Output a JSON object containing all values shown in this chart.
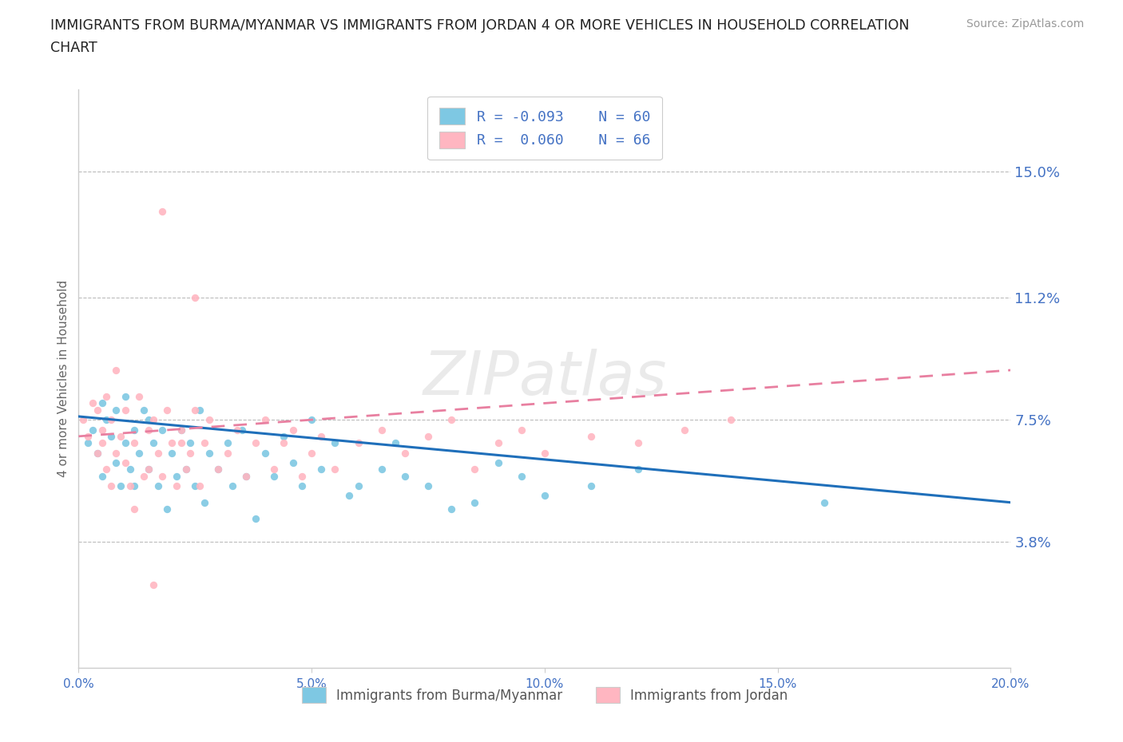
{
  "title_line1": "IMMIGRANTS FROM BURMA/MYANMAR VS IMMIGRANTS FROM JORDAN 4 OR MORE VEHICLES IN HOUSEHOLD CORRELATION",
  "title_line2": "CHART",
  "source": "Source: ZipAtlas.com",
  "ylabel": "4 or more Vehicles in Household",
  "xlim": [
    0.0,
    0.2
  ],
  "ylim": [
    0.0,
    0.175
  ],
  "yticks": [
    0.038,
    0.075,
    0.112,
    0.15
  ],
  "ytick_labels": [
    "3.8%",
    "7.5%",
    "11.2%",
    "15.0%"
  ],
  "xticks": [
    0.0,
    0.05,
    0.1,
    0.15,
    0.2
  ],
  "xtick_labels": [
    "0.0%",
    "5.0%",
    "10.0%",
    "15.0%",
    "20.0%"
  ],
  "blue_R": -0.093,
  "blue_N": 60,
  "pink_R": 0.06,
  "pink_N": 66,
  "blue_color": "#7ec8e3",
  "pink_color": "#ffb6c1",
  "blue_line_color": "#1f6fba",
  "pink_line_color": "#e87fa0",
  "watermark": "ZIPatlas",
  "legend_label_blue": "Immigrants from Burma/Myanmar",
  "legend_label_pink": "Immigrants from Jordan",
  "blue_scatter_x": [
    0.002,
    0.003,
    0.004,
    0.005,
    0.005,
    0.006,
    0.007,
    0.008,
    0.008,
    0.009,
    0.01,
    0.01,
    0.011,
    0.012,
    0.012,
    0.013,
    0.014,
    0.015,
    0.015,
    0.016,
    0.017,
    0.018,
    0.019,
    0.02,
    0.021,
    0.022,
    0.023,
    0.024,
    0.025,
    0.026,
    0.027,
    0.028,
    0.03,
    0.032,
    0.033,
    0.035,
    0.036,
    0.038,
    0.04,
    0.042,
    0.044,
    0.046,
    0.048,
    0.05,
    0.052,
    0.055,
    0.058,
    0.06,
    0.065,
    0.068,
    0.07,
    0.075,
    0.08,
    0.085,
    0.09,
    0.095,
    0.1,
    0.11,
    0.12,
    0.16
  ],
  "blue_scatter_y": [
    0.068,
    0.072,
    0.065,
    0.058,
    0.08,
    0.075,
    0.07,
    0.062,
    0.078,
    0.055,
    0.068,
    0.082,
    0.06,
    0.072,
    0.055,
    0.065,
    0.078,
    0.06,
    0.075,
    0.068,
    0.055,
    0.072,
    0.048,
    0.065,
    0.058,
    0.072,
    0.06,
    0.068,
    0.055,
    0.078,
    0.05,
    0.065,
    0.06,
    0.068,
    0.055,
    0.072,
    0.058,
    0.045,
    0.065,
    0.058,
    0.07,
    0.062,
    0.055,
    0.075,
    0.06,
    0.068,
    0.052,
    0.055,
    0.06,
    0.068,
    0.058,
    0.055,
    0.048,
    0.05,
    0.062,
    0.058,
    0.052,
    0.055,
    0.06,
    0.05
  ],
  "pink_scatter_x": [
    0.001,
    0.002,
    0.003,
    0.004,
    0.004,
    0.005,
    0.005,
    0.006,
    0.006,
    0.007,
    0.007,
    0.008,
    0.008,
    0.009,
    0.01,
    0.01,
    0.011,
    0.012,
    0.013,
    0.014,
    0.015,
    0.015,
    0.016,
    0.017,
    0.018,
    0.019,
    0.02,
    0.021,
    0.022,
    0.023,
    0.024,
    0.025,
    0.026,
    0.027,
    0.028,
    0.03,
    0.032,
    0.034,
    0.036,
    0.038,
    0.04,
    0.042,
    0.044,
    0.046,
    0.048,
    0.05,
    0.052,
    0.055,
    0.06,
    0.065,
    0.07,
    0.075,
    0.08,
    0.085,
    0.09,
    0.095,
    0.1,
    0.11,
    0.12,
    0.13,
    0.14,
    0.025,
    0.018,
    0.022,
    0.012,
    0.016
  ],
  "pink_scatter_y": [
    0.075,
    0.07,
    0.08,
    0.065,
    0.078,
    0.068,
    0.072,
    0.06,
    0.082,
    0.055,
    0.075,
    0.065,
    0.09,
    0.07,
    0.062,
    0.078,
    0.055,
    0.068,
    0.082,
    0.058,
    0.072,
    0.06,
    0.075,
    0.065,
    0.058,
    0.078,
    0.068,
    0.055,
    0.072,
    0.06,
    0.065,
    0.078,
    0.055,
    0.068,
    0.075,
    0.06,
    0.065,
    0.072,
    0.058,
    0.068,
    0.075,
    0.06,
    0.068,
    0.072,
    0.058,
    0.065,
    0.07,
    0.06,
    0.068,
    0.072,
    0.065,
    0.07,
    0.075,
    0.06,
    0.068,
    0.072,
    0.065,
    0.07,
    0.068,
    0.072,
    0.075,
    0.112,
    0.138,
    0.068,
    0.048,
    0.025
  ]
}
